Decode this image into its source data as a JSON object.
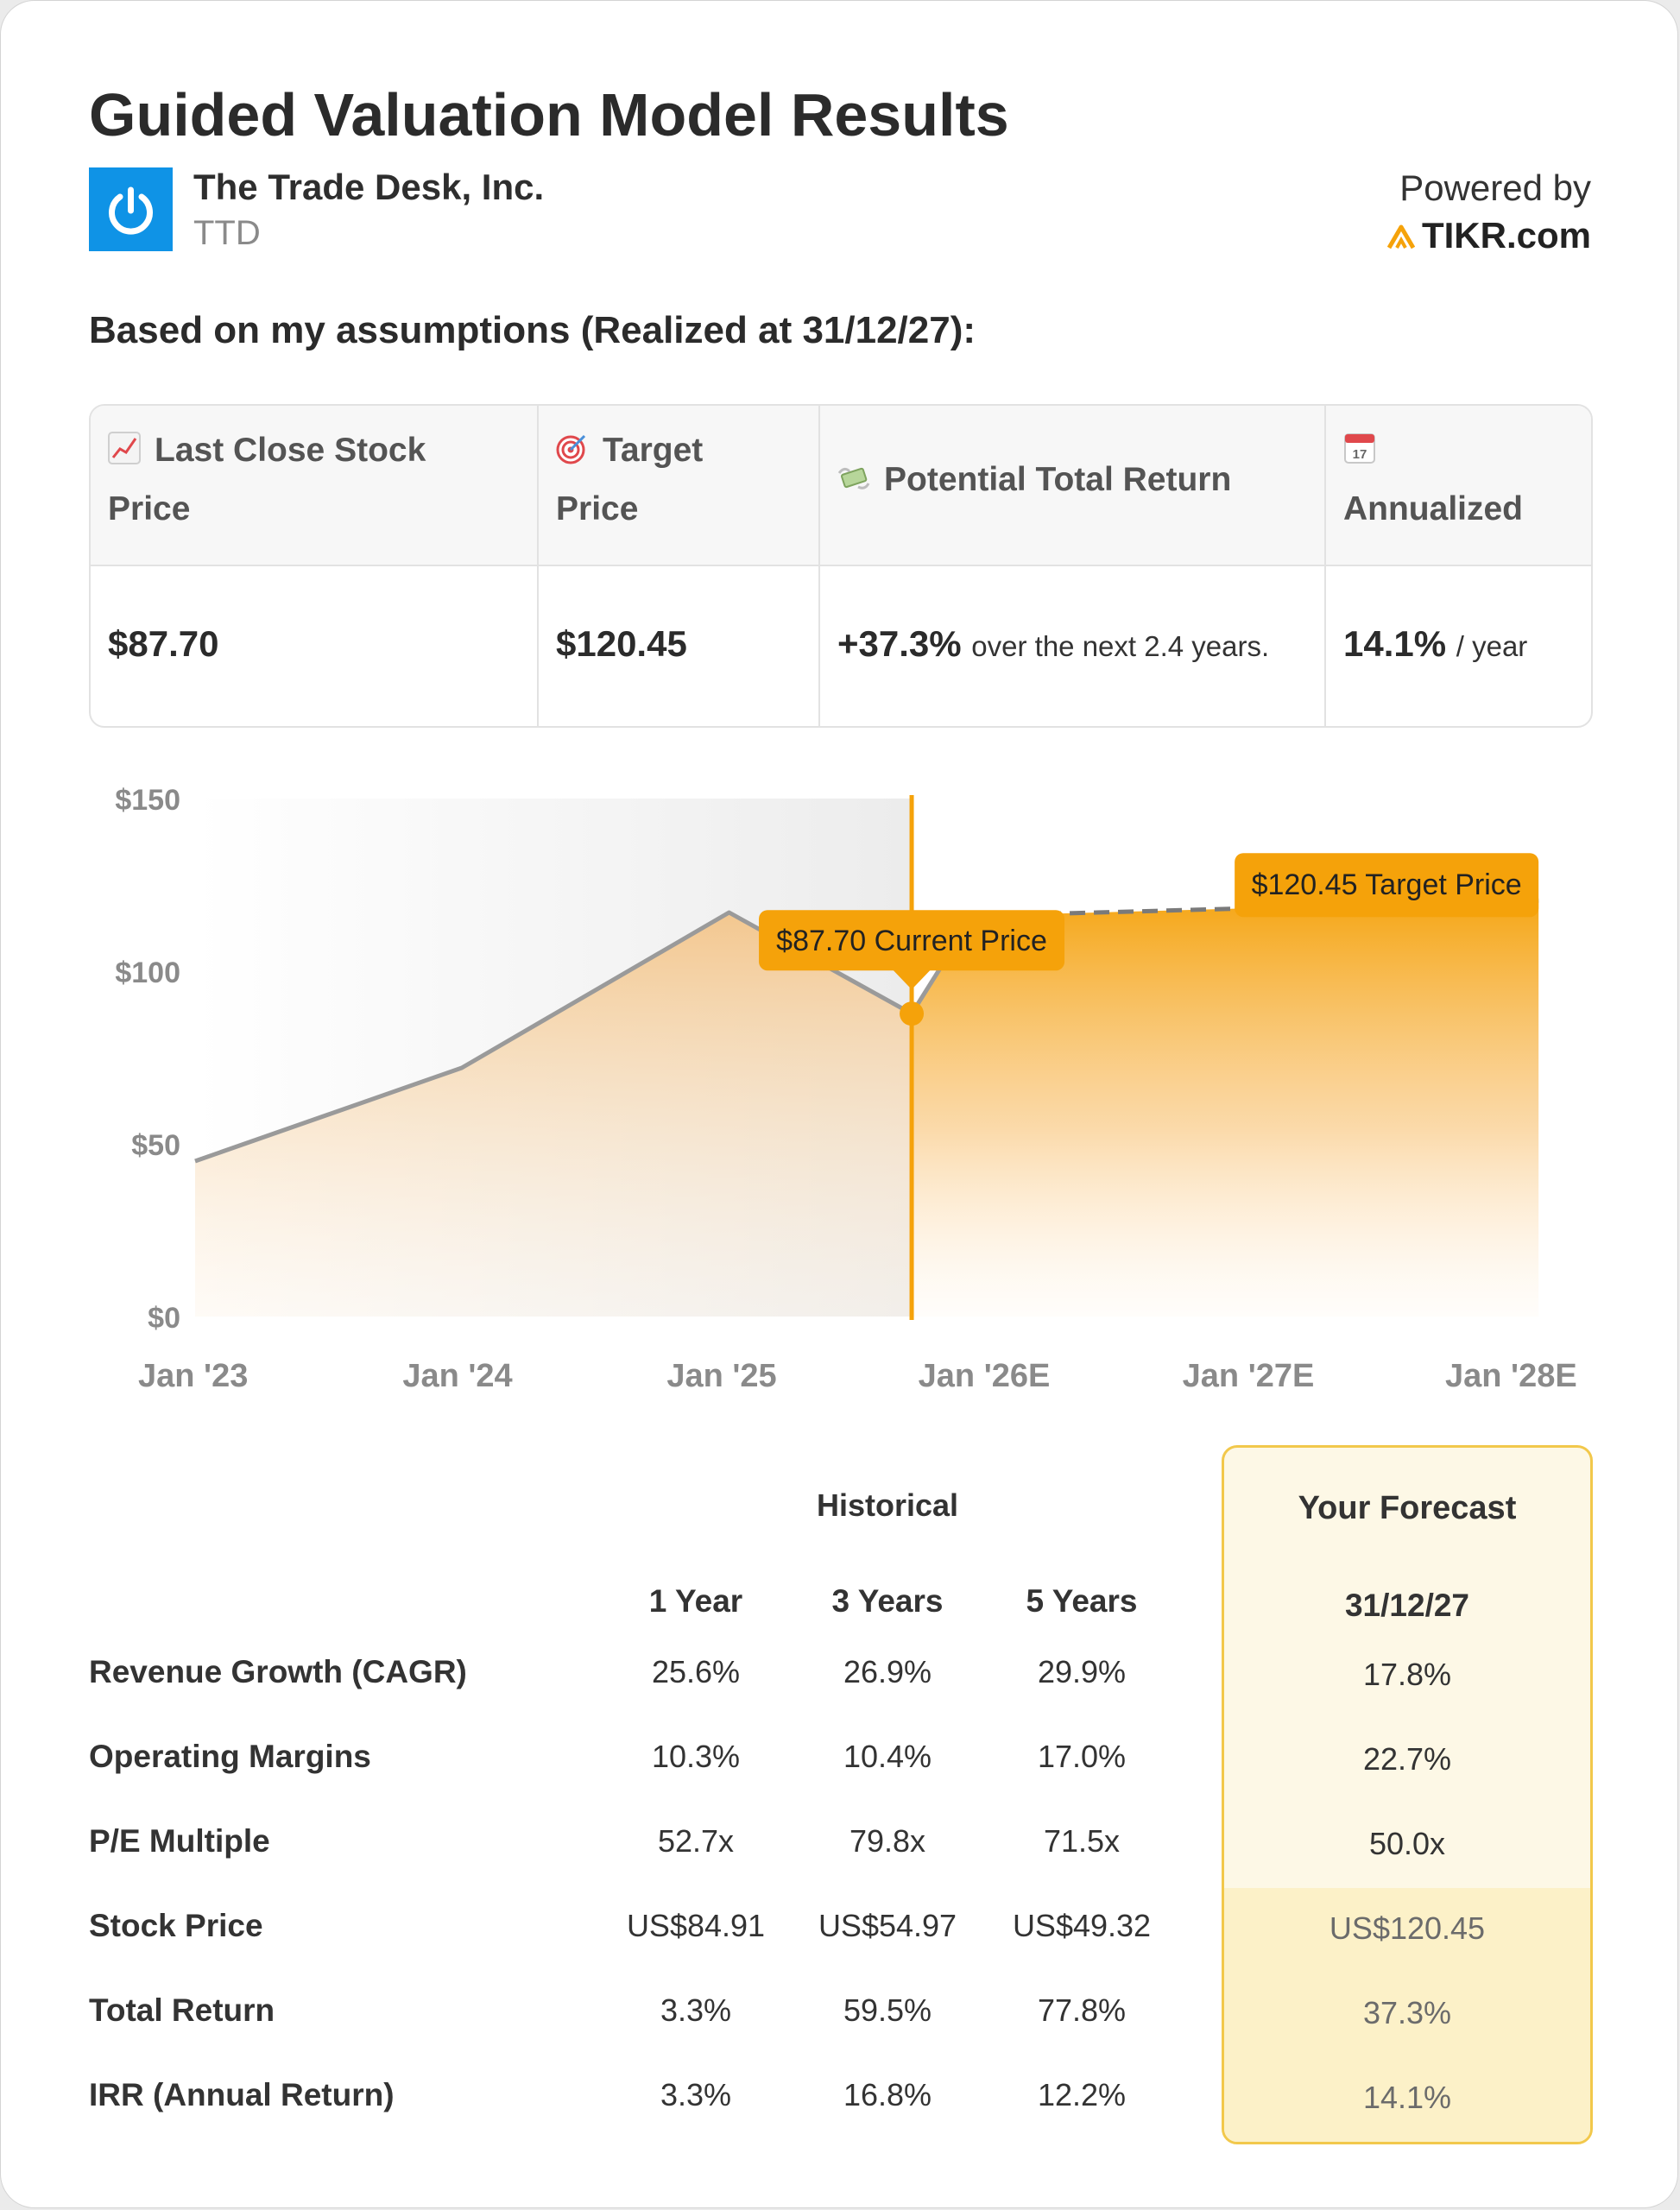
{
  "header": {
    "title": "Guided Valuation Model Results",
    "company_name": "The Trade Desk, Inc.",
    "ticker": "TTD",
    "powered_by": "Powered by",
    "brand": "TIKR.com"
  },
  "subtitle": "Based on my assumptions (Realized at 31/12/27):",
  "summary": {
    "columns": [
      {
        "header_line1": "Last Close Stock",
        "header_line2": "Price",
        "icon": "chart-increasing-icon",
        "value": "$87.70",
        "suffix": ""
      },
      {
        "header_line1": "Target",
        "header_line2": "Price",
        "icon": "target-icon",
        "value": "$120.45",
        "suffix": ""
      },
      {
        "header_line1": "Potential Total Return",
        "header_line2": "",
        "icon": "money-wings-icon",
        "value": "+37.3%",
        "suffix": "over the next 2.4 years."
      },
      {
        "header_line1": "",
        "header_line2": "Annualized",
        "icon": "calendar-icon",
        "calendar_day": "17",
        "value": "14.1%",
        "suffix": "/ year"
      }
    ]
  },
  "chart_data": {
    "type": "area",
    "title": "",
    "x_ticks": [
      "Jan '23",
      "Jan '24",
      "Jan '25",
      "Jan '26E",
      "Jan '27E",
      "Jan '28E"
    ],
    "y_ticks": [
      "$0",
      "$50",
      "$100",
      "$150"
    ],
    "ylim": [
      0,
      150
    ],
    "xlim": [
      "2023-01-01",
      "2028-01-01"
    ],
    "series": [
      {
        "points": [
          [
            "2023-01-01",
            45
          ],
          [
            "2024-01-01",
            72
          ],
          [
            "2025-01-01",
            117
          ],
          [
            "2025-09-08",
            87.7
          ]
        ]
      },
      {
        "points": [
          [
            "2025-09-08",
            87.7
          ],
          [
            "2025-12-01",
            116
          ],
          [
            "2027-12-31",
            120.45
          ]
        ]
      }
    ],
    "current_date": "2025-09-08",
    "current_price": 87.7,
    "target_price": 120.45,
    "current_label": "$87.70 Current Price",
    "target_label": "$120.45 Target Price",
    "colors": {
      "accent": "#f5a20a",
      "line": "#9a9a9a",
      "history_shade": "#f1f1f1"
    },
    "grid": false
  },
  "metrics": {
    "historical_label": "Historical",
    "forecast_label": "Your Forecast",
    "column_headers": [
      "1 Year",
      "3 Years",
      "5 Years",
      "31/12/27"
    ],
    "rows": [
      {
        "label": "Revenue Growth (CAGR)",
        "values": [
          "25.6%",
          "26.9%",
          "29.9%",
          "17.8%"
        ]
      },
      {
        "label": "Operating Margins",
        "values": [
          "10.3%",
          "10.4%",
          "17.0%",
          "22.7%"
        ]
      },
      {
        "label": "P/E Multiple",
        "values": [
          "52.7x",
          "79.8x",
          "71.5x",
          "50.0x"
        ]
      },
      {
        "label": "Stock Price",
        "values": [
          "US$84.91",
          "US$54.97",
          "US$49.32",
          "US$120.45"
        ]
      },
      {
        "label": "Total Return",
        "values": [
          "3.3%",
          "59.5%",
          "77.8%",
          "37.3%"
        ]
      },
      {
        "label": "IRR (Annual Return)",
        "values": [
          "3.3%",
          "16.8%",
          "12.2%",
          "14.1%"
        ]
      }
    ],
    "colors": {
      "forecast_border": "#f2c84b",
      "forecast_bg": "#fdf8e6"
    }
  }
}
